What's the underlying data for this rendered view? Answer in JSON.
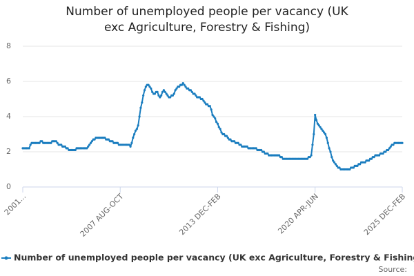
{
  "chart_data": {
    "type": "line",
    "title": "Number of unemployed people per vacancy (UK exc Agriculture, Forestry & Fishing)",
    "source": "Source:",
    "categories": [
      "2001...",
      null,
      null,
      null,
      null,
      null,
      null,
      null,
      null,
      null,
      null,
      null,
      null,
      null,
      null,
      null,
      null,
      null,
      null,
      null,
      null,
      null,
      null,
      null,
      null,
      null,
      null,
      null,
      null,
      null,
      null,
      null,
      null,
      null,
      null,
      null,
      null,
      null,
      null,
      null,
      null,
      null,
      null,
      null,
      null,
      null,
      null,
      null,
      null,
      null,
      null,
      null,
      null,
      null,
      null,
      null,
      null,
      null,
      null,
      null,
      null,
      null,
      null,
      null,
      null,
      null,
      null,
      null,
      null,
      null,
      null,
      null,
      null,
      null,
      null,
      null,
      "2007 AUG-OCT",
      null,
      null,
      null,
      null,
      null,
      null,
      null,
      null,
      null,
      null,
      null,
      null,
      null,
      null,
      null,
      null,
      null,
      null,
      null,
      null,
      null,
      null,
      null,
      null,
      null,
      null,
      null,
      null,
      null,
      null,
      null,
      null,
      null,
      null,
      null,
      null,
      null,
      null,
      null,
      null,
      null,
      null,
      null,
      null,
      null,
      null,
      null,
      null,
      null,
      null,
      null,
      null,
      null,
      null,
      null,
      null,
      null,
      null,
      null,
      null,
      null,
      null,
      null,
      null,
      null,
      null,
      null,
      null,
      null,
      null,
      null,
      null,
      null,
      null,
      null,
      "2013 DEC-FEB",
      null,
      null,
      null,
      null,
      null,
      null,
      null,
      null,
      null,
      null,
      null,
      null,
      null,
      null,
      null,
      null,
      null,
      null,
      null,
      null,
      null,
      null,
      null,
      null,
      null,
      null,
      null,
      null,
      null,
      null,
      null,
      null,
      null,
      null,
      null,
      null,
      null,
      null,
      null,
      null,
      null,
      null,
      null,
      null,
      null,
      null,
      null,
      null,
      null,
      null,
      null,
      null,
      null,
      null,
      null,
      null,
      null,
      null,
      null,
      null,
      null,
      null,
      null,
      null,
      null,
      null,
      null,
      null,
      null,
      null,
      null,
      null,
      null,
      null,
      null,
      "2020 APR-JUN",
      null,
      null,
      null,
      null,
      null,
      null,
      null,
      null,
      null,
      null,
      null,
      null,
      null,
      null,
      null,
      null,
      null,
      null,
      null,
      null,
      null,
      null,
      null,
      null,
      null,
      null,
      null,
      null,
      null,
      null,
      null,
      null,
      null,
      null,
      null,
      null,
      null,
      null,
      null,
      null,
      null,
      null,
      null,
      null,
      null,
      null,
      null,
      null,
      null,
      null,
      null,
      null,
      null,
      null,
      null,
      null,
      null,
      null,
      null,
      null,
      null,
      null,
      null,
      null,
      null,
      null,
      null,
      "2025 DEC-FEB"
    ],
    "series": [
      {
        "name": "Number of unemployed people per vacancy (UK exc Agriculture, Forestry & Fishing)",
        "color": "#1a7dbf",
        "values": [
          2.2,
          2.2,
          2.2,
          2.2,
          2.2,
          2.2,
          2.4,
          2.5,
          2.5,
          2.5,
          2.5,
          2.5,
          2.5,
          2.5,
          2.6,
          2.6,
          2.5,
          2.5,
          2.5,
          2.5,
          2.5,
          2.5,
          2.5,
          2.6,
          2.6,
          2.6,
          2.6,
          2.5,
          2.4,
          2.4,
          2.4,
          2.3,
          2.3,
          2.3,
          2.2,
          2.2,
          2.1,
          2.1,
          2.1,
          2.1,
          2.1,
          2.1,
          2.2,
          2.2,
          2.2,
          2.2,
          2.2,
          2.2,
          2.2,
          2.2,
          2.2,
          2.3,
          2.4,
          2.5,
          2.6,
          2.7,
          2.7,
          2.8,
          2.8,
          2.8,
          2.8,
          2.8,
          2.8,
          2.8,
          2.8,
          2.7,
          2.7,
          2.7,
          2.6,
          2.6,
          2.6,
          2.5,
          2.5,
          2.5,
          2.5,
          2.4,
          2.4,
          2.4,
          2.4,
          2.4,
          2.4,
          2.4,
          2.4,
          2.4,
          2.3,
          2.5,
          2.8,
          3.0,
          3.2,
          3.3,
          3.5,
          4.0,
          4.5,
          4.8,
          5.2,
          5.5,
          5.7,
          5.8,
          5.8,
          5.7,
          5.6,
          5.4,
          5.3,
          5.3,
          5.4,
          5.4,
          5.2,
          5.1,
          5.2,
          5.4,
          5.5,
          5.4,
          5.3,
          5.2,
          5.1,
          5.1,
          5.2,
          5.2,
          5.3,
          5.5,
          5.6,
          5.7,
          5.7,
          5.8,
          5.8,
          5.9,
          5.8,
          5.7,
          5.6,
          5.6,
          5.5,
          5.5,
          5.4,
          5.3,
          5.3,
          5.2,
          5.1,
          5.1,
          5.1,
          5.0,
          5.0,
          4.9,
          4.8,
          4.7,
          4.7,
          4.6,
          4.6,
          4.4,
          4.1,
          4.0,
          3.9,
          3.7,
          3.6,
          3.4,
          3.3,
          3.1,
          3.0,
          3.0,
          2.9,
          2.9,
          2.8,
          2.7,
          2.7,
          2.6,
          2.6,
          2.6,
          2.5,
          2.5,
          2.5,
          2.4,
          2.4,
          2.3,
          2.3,
          2.3,
          2.3,
          2.3,
          2.2,
          2.2,
          2.2,
          2.2,
          2.2,
          2.2,
          2.2,
          2.1,
          2.1,
          2.1,
          2.1,
          2.0,
          2.0,
          1.9,
          1.9,
          1.9,
          1.8,
          1.8,
          1.8,
          1.8,
          1.8,
          1.8,
          1.8,
          1.8,
          1.8,
          1.7,
          1.7,
          1.6,
          1.6,
          1.6,
          1.6,
          1.6,
          1.6,
          1.6,
          1.6,
          1.6,
          1.6,
          1.6,
          1.6,
          1.6,
          1.6,
          1.6,
          1.6,
          1.6,
          1.6,
          1.6,
          1.6,
          1.7,
          1.7,
          1.8,
          2.4,
          3.0,
          4.1,
          3.8,
          3.6,
          3.5,
          3.4,
          3.3,
          3.2,
          3.1,
          3.0,
          2.8,
          2.5,
          2.2,
          2.0,
          1.7,
          1.5,
          1.4,
          1.3,
          1.2,
          1.1,
          1.1,
          1.0,
          1.0,
          1.0,
          1.0,
          1.0,
          1.0,
          1.0,
          1.0,
          1.1,
          1.1,
          1.1,
          1.2,
          1.2,
          1.2,
          1.3,
          1.3,
          1.4,
          1.4,
          1.4,
          1.4,
          1.5,
          1.5,
          1.5,
          1.6,
          1.6,
          1.7,
          1.7,
          1.8,
          1.8,
          1.8,
          1.8,
          1.9,
          1.9,
          1.9,
          2.0,
          2.0,
          2.1,
          2.1,
          2.2,
          2.3,
          2.4,
          2.4,
          2.5,
          2.5,
          2.5,
          2.5,
          2.5,
          2.5,
          2.5
        ]
      }
    ],
    "ylim": [
      0,
      8
    ],
    "yticks": [
      0,
      2,
      4,
      6,
      8
    ],
    "grid": true
  }
}
